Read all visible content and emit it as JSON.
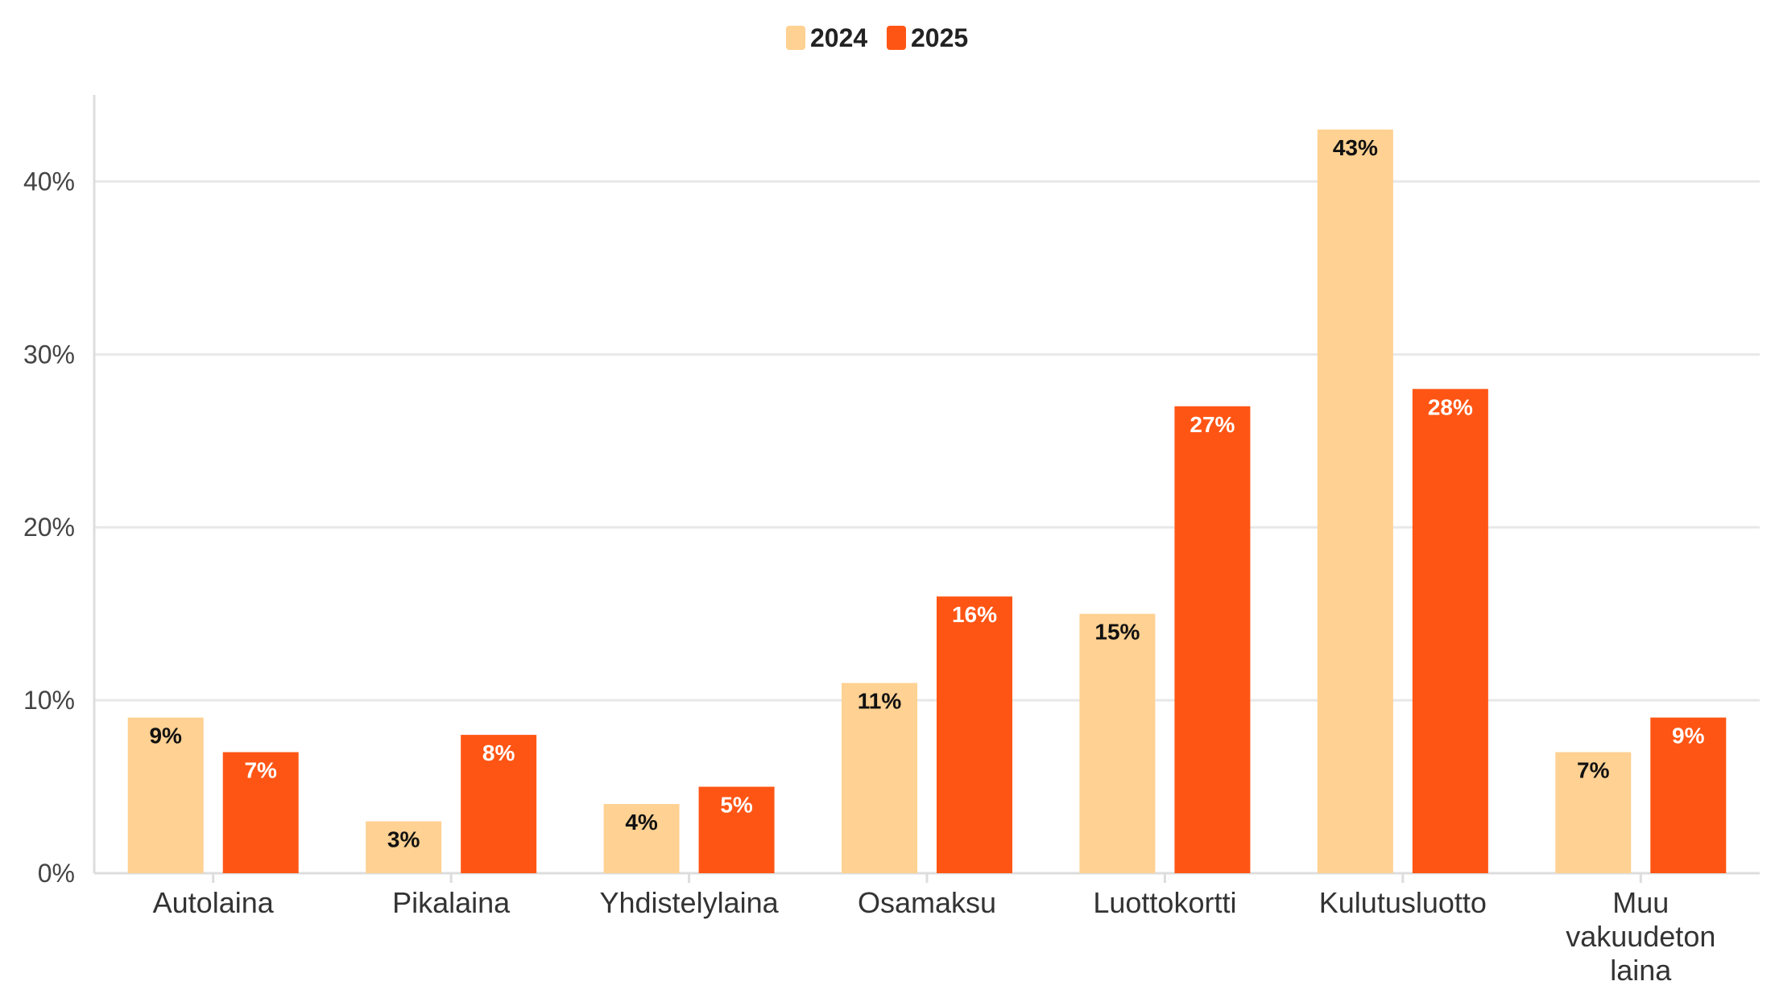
{
  "chart_data": {
    "type": "bar",
    "title": "",
    "xlabel": "",
    "ylabel": "",
    "ylim": [
      0,
      45
    ],
    "yticks": [
      0,
      10,
      20,
      30,
      40
    ],
    "ytick_labels": [
      "0%",
      "10%",
      "20%",
      "30%",
      "40%"
    ],
    "grid": true,
    "legend_position": "top-center",
    "categories": [
      [
        "Autolaina"
      ],
      [
        "Pikalaina"
      ],
      [
        "Yhdistelylaina"
      ],
      [
        "Osamaksu"
      ],
      [
        "Luottokortti"
      ],
      [
        "Kulutusluotto"
      ],
      [
        "Muu",
        "vakuudeton",
        "laina"
      ]
    ],
    "series": [
      {
        "name": "2024",
        "color": "#FFD192",
        "label_color": "#111111",
        "values": [
          9,
          3,
          4,
          11,
          15,
          43,
          7
        ],
        "labels": [
          "9%",
          "3%",
          "4%",
          "11%",
          "15%",
          "43%",
          "7%"
        ]
      },
      {
        "name": "2025",
        "color": "#FF5514",
        "label_color": "#ffffff",
        "values": [
          7,
          8,
          5,
          16,
          27,
          28,
          9
        ],
        "labels": [
          "7%",
          "8%",
          "5%",
          "16%",
          "27%",
          "28%",
          "9%"
        ]
      }
    ],
    "colors": {
      "grid": "#e8e8e8",
      "axis": "#dddddd"
    }
  }
}
